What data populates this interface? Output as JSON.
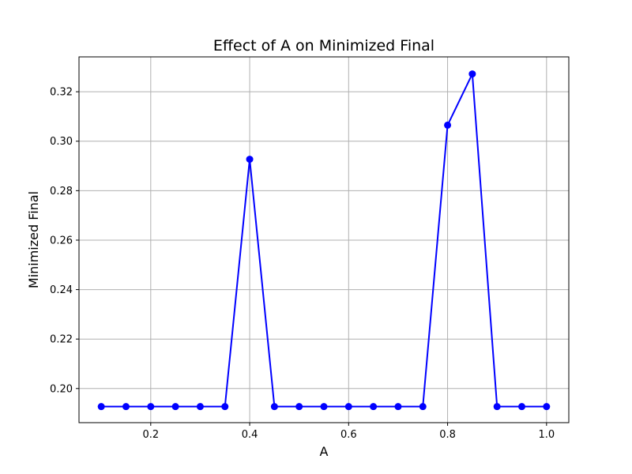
{
  "chart_data": {
    "type": "line",
    "title": "Effect of A on Minimized Final",
    "xlabel": "A",
    "ylabel": "Minimized Final",
    "xlim": [
      0.055,
      1.045
    ],
    "ylim": [
      0.1862,
      0.3341
    ],
    "xticks": [
      0.2,
      0.4,
      0.6,
      0.8,
      1.0
    ],
    "xtick_labels": [
      "0.2",
      "0.4",
      "0.6",
      "0.8",
      "1.0"
    ],
    "yticks": [
      0.2,
      0.22,
      0.24,
      0.26,
      0.28,
      0.3,
      0.32
    ],
    "ytick_labels": [
      "0.20",
      "0.22",
      "0.24",
      "0.26",
      "0.28",
      "0.30",
      "0.32"
    ],
    "grid": true,
    "series": [
      {
        "color": "#0000ff",
        "marker": "circle",
        "x": [
          0.1,
          0.15,
          0.2,
          0.25,
          0.3,
          0.35,
          0.4,
          0.45,
          0.5,
          0.55,
          0.6,
          0.65,
          0.7,
          0.75,
          0.8,
          0.85,
          0.9,
          0.95,
          1.0
        ],
        "y": [
          0.1927,
          0.1927,
          0.1927,
          0.1927,
          0.1927,
          0.1927,
          0.2927,
          0.1927,
          0.1927,
          0.1927,
          0.1927,
          0.1927,
          0.1927,
          0.1927,
          0.3065,
          0.3272,
          0.1927,
          0.1927,
          0.1927
        ]
      }
    ]
  }
}
